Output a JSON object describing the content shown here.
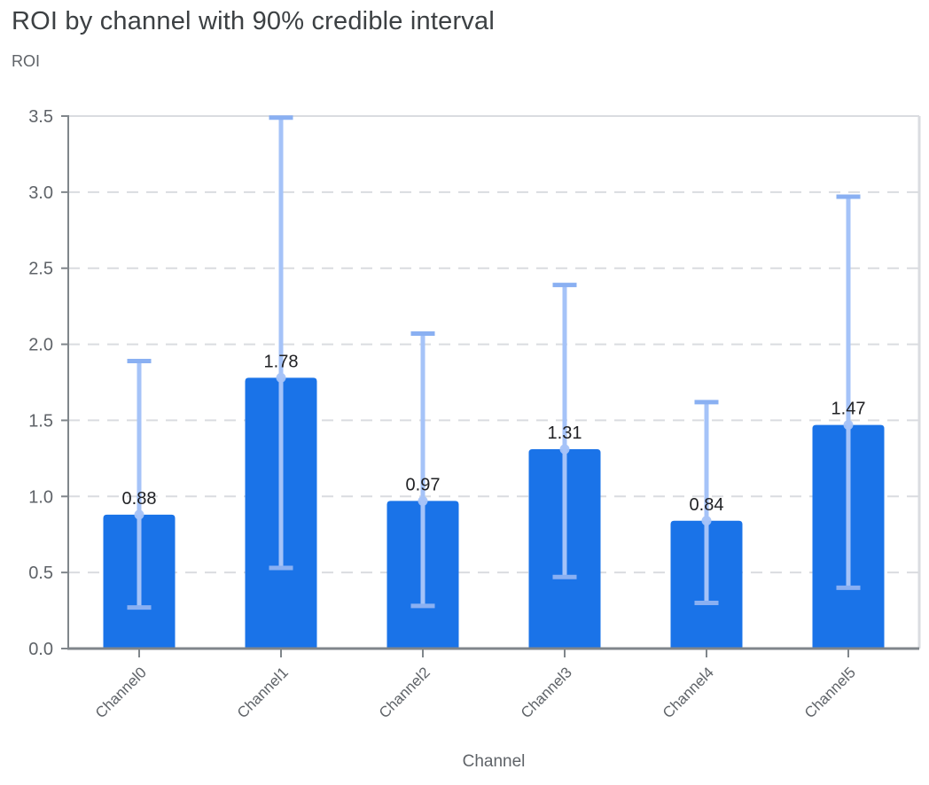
{
  "page": {
    "title": "ROI by channel with 90% credible interval",
    "y_axis_title": "ROI",
    "x_axis_title": "Channel"
  },
  "chart_data": {
    "type": "bar",
    "title": "ROI by channel with 90% credible interval",
    "xlabel": "Channel",
    "ylabel": "ROI",
    "categories": [
      "Channel0",
      "Channel1",
      "Channel2",
      "Channel3",
      "Channel4",
      "Channel5"
    ],
    "series": [
      {
        "name": "ROI",
        "values": [
          0.88,
          1.78,
          0.97,
          1.31,
          0.84,
          1.47
        ]
      }
    ],
    "value_labels": [
      "0.88",
      "1.78",
      "0.97",
      "1.31",
      "0.84",
      "1.47"
    ],
    "error_bars": {
      "label": "90% credible interval",
      "low": [
        0.27,
        0.53,
        0.28,
        0.47,
        0.3,
        0.4
      ],
      "high": [
        1.89,
        3.49,
        2.07,
        2.39,
        1.62,
        2.97
      ]
    },
    "ylim": [
      0,
      3.5
    ],
    "y_ticks": [
      "0.0",
      "0.5",
      "1.0",
      "1.5",
      "2.0",
      "2.5",
      "3.0",
      "3.5"
    ],
    "grid": "horizontal-dashed",
    "legend": "none",
    "colors": {
      "bar": "#1a73e8",
      "error_line": "#a5c3f8",
      "error_cap": "#8ab0f2",
      "marker_dot": "#a5c3f8",
      "axis": "#80868b",
      "grid_line": "#dadce0",
      "plot_border": "#dadce0",
      "tick_label": "#5f6368",
      "value_label": "#202124",
      "title": "#3c4043"
    }
  }
}
